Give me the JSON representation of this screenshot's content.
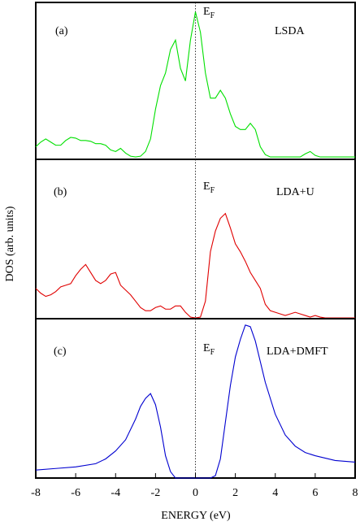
{
  "chart_data": [
    {
      "type": "line",
      "panel_label": "(a)",
      "method_label": "LSDA",
      "fermi_label": [
        "E",
        "F"
      ],
      "vline": 0,
      "xlim": [
        -8,
        8
      ],
      "ylim": [
        0,
        1
      ],
      "x": [
        -8,
        -7.75,
        -7.5,
        -7.25,
        -7,
        -6.75,
        -6.5,
        -6.25,
        -6,
        -5.75,
        -5.5,
        -5.25,
        -5,
        -4.75,
        -4.5,
        -4.25,
        -4,
        -3.75,
        -3.5,
        -3.25,
        -3,
        -2.75,
        -2.5,
        -2.25,
        -2,
        -1.75,
        -1.5,
        -1.25,
        -1,
        -0.75,
        -0.5,
        -0.25,
        0,
        0.25,
        0.5,
        0.75,
        1,
        1.25,
        1.5,
        1.75,
        2,
        2.25,
        2.5,
        2.75,
        3,
        3.25,
        3.5,
        3.75,
        4,
        4.25,
        4.5,
        4.75,
        5,
        5.25,
        5.5,
        5.75,
        6,
        6.25,
        6.5,
        6.75,
        7,
        7.25,
        7.5,
        7.75,
        8
      ],
      "series": [
        {
          "color": "#00e000",
          "values": [
            0.08,
            0.11,
            0.13,
            0.11,
            0.09,
            0.09,
            0.12,
            0.14,
            0.135,
            0.12,
            0.12,
            0.115,
            0.1,
            0.1,
            0.09,
            0.06,
            0.05,
            0.07,
            0.04,
            0.02,
            0.015,
            0.02,
            0.05,
            0.13,
            0.32,
            0.47,
            0.55,
            0.7,
            0.76,
            0.58,
            0.5,
            0.76,
            0.94,
            0.81,
            0.55,
            0.39,
            0.39,
            0.44,
            0.39,
            0.29,
            0.21,
            0.19,
            0.19,
            0.23,
            0.19,
            0.08,
            0.03,
            0.015,
            0.015,
            0.015,
            0.015,
            0.015,
            0.015,
            0.015,
            0.035,
            0.05,
            0.025,
            0.015,
            0.015,
            0.015,
            0.015,
            0.015,
            0.015,
            0.015,
            0.015
          ]
        }
      ]
    },
    {
      "type": "line",
      "panel_label": "(b)",
      "method_label": "LDA+U",
      "fermi_label": [
        "E",
        "F"
      ],
      "vline": 0,
      "ylabel": "DOS (arb. units)",
      "xlim": [
        -8,
        8
      ],
      "ylim": [
        0,
        1
      ],
      "x": [
        -8,
        -7.75,
        -7.5,
        -7.25,
        -7,
        -6.75,
        -6.5,
        -6.25,
        -6,
        -5.75,
        -5.5,
        -5.25,
        -5,
        -4.75,
        -4.5,
        -4.25,
        -4,
        -3.75,
        -3.5,
        -3.25,
        -3,
        -2.75,
        -2.5,
        -2.25,
        -2,
        -1.75,
        -1.5,
        -1.25,
        -1,
        -0.75,
        -0.5,
        -0.25,
        0,
        0.25,
        0.5,
        0.75,
        1,
        1.25,
        1.5,
        1.75,
        2,
        2.25,
        2.5,
        2.75,
        3,
        3.25,
        3.5,
        3.75,
        4,
        4.25,
        4.5,
        4.75,
        5,
        5.25,
        5.5,
        5.75,
        6,
        6.25,
        6.5,
        6.75,
        7,
        7.25,
        7.5,
        7.75,
        8
      ],
      "series": [
        {
          "color": "#e00000",
          "values": [
            0.19,
            0.16,
            0.14,
            0.15,
            0.17,
            0.2,
            0.21,
            0.22,
            0.27,
            0.31,
            0.34,
            0.29,
            0.24,
            0.22,
            0.24,
            0.28,
            0.29,
            0.21,
            0.18,
            0.15,
            0.11,
            0.07,
            0.05,
            0.05,
            0.07,
            0.08,
            0.06,
            0.06,
            0.08,
            0.08,
            0.04,
            0.01,
            0.005,
            0.01,
            0.11,
            0.42,
            0.55,
            0.63,
            0.66,
            0.57,
            0.47,
            0.42,
            0.36,
            0.29,
            0.24,
            0.19,
            0.09,
            0.05,
            0.04,
            0.03,
            0.02,
            0.03,
            0.04,
            0.03,
            0.02,
            0.01,
            0.02,
            0.01,
            0.005,
            0.005,
            0.005,
            0.005,
            0.005,
            0.005,
            0.005
          ]
        }
      ]
    },
    {
      "type": "line",
      "panel_label": "(c)",
      "method_label": "LDA+DMFT",
      "fermi_label": [
        "E",
        "F"
      ],
      "vline": 0,
      "xlabel": "ENERGY (eV)",
      "xlim": [
        -8,
        8
      ],
      "ylim": [
        0,
        1
      ],
      "xticks": [
        -8,
        -6,
        -4,
        -2,
        0,
        2,
        4,
        6,
        8
      ],
      "x": [
        -8,
        -7,
        -6,
        -5,
        -4.5,
        -4,
        -3.5,
        -3,
        -2.75,
        -2.5,
        -2.25,
        -2,
        -1.75,
        -1.5,
        -1.25,
        -1,
        -0.5,
        0,
        0.5,
        0.75,
        1,
        1.25,
        1.5,
        1.75,
        2,
        2.25,
        2.5,
        2.75,
        3,
        3.25,
        3.5,
        4,
        4.5,
        5,
        5.5,
        6,
        7,
        8
      ],
      "series": [
        {
          "color": "#0000d0",
          "values": [
            0.05,
            0.06,
            0.07,
            0.09,
            0.12,
            0.17,
            0.24,
            0.37,
            0.45,
            0.5,
            0.53,
            0.46,
            0.32,
            0.14,
            0.04,
            0,
            0,
            0,
            0,
            0,
            0.015,
            0.12,
            0.35,
            0.58,
            0.76,
            0.87,
            0.96,
            0.95,
            0.86,
            0.73,
            0.6,
            0.4,
            0.27,
            0.2,
            0.16,
            0.14,
            0.11,
            0.1
          ]
        }
      ]
    }
  ]
}
